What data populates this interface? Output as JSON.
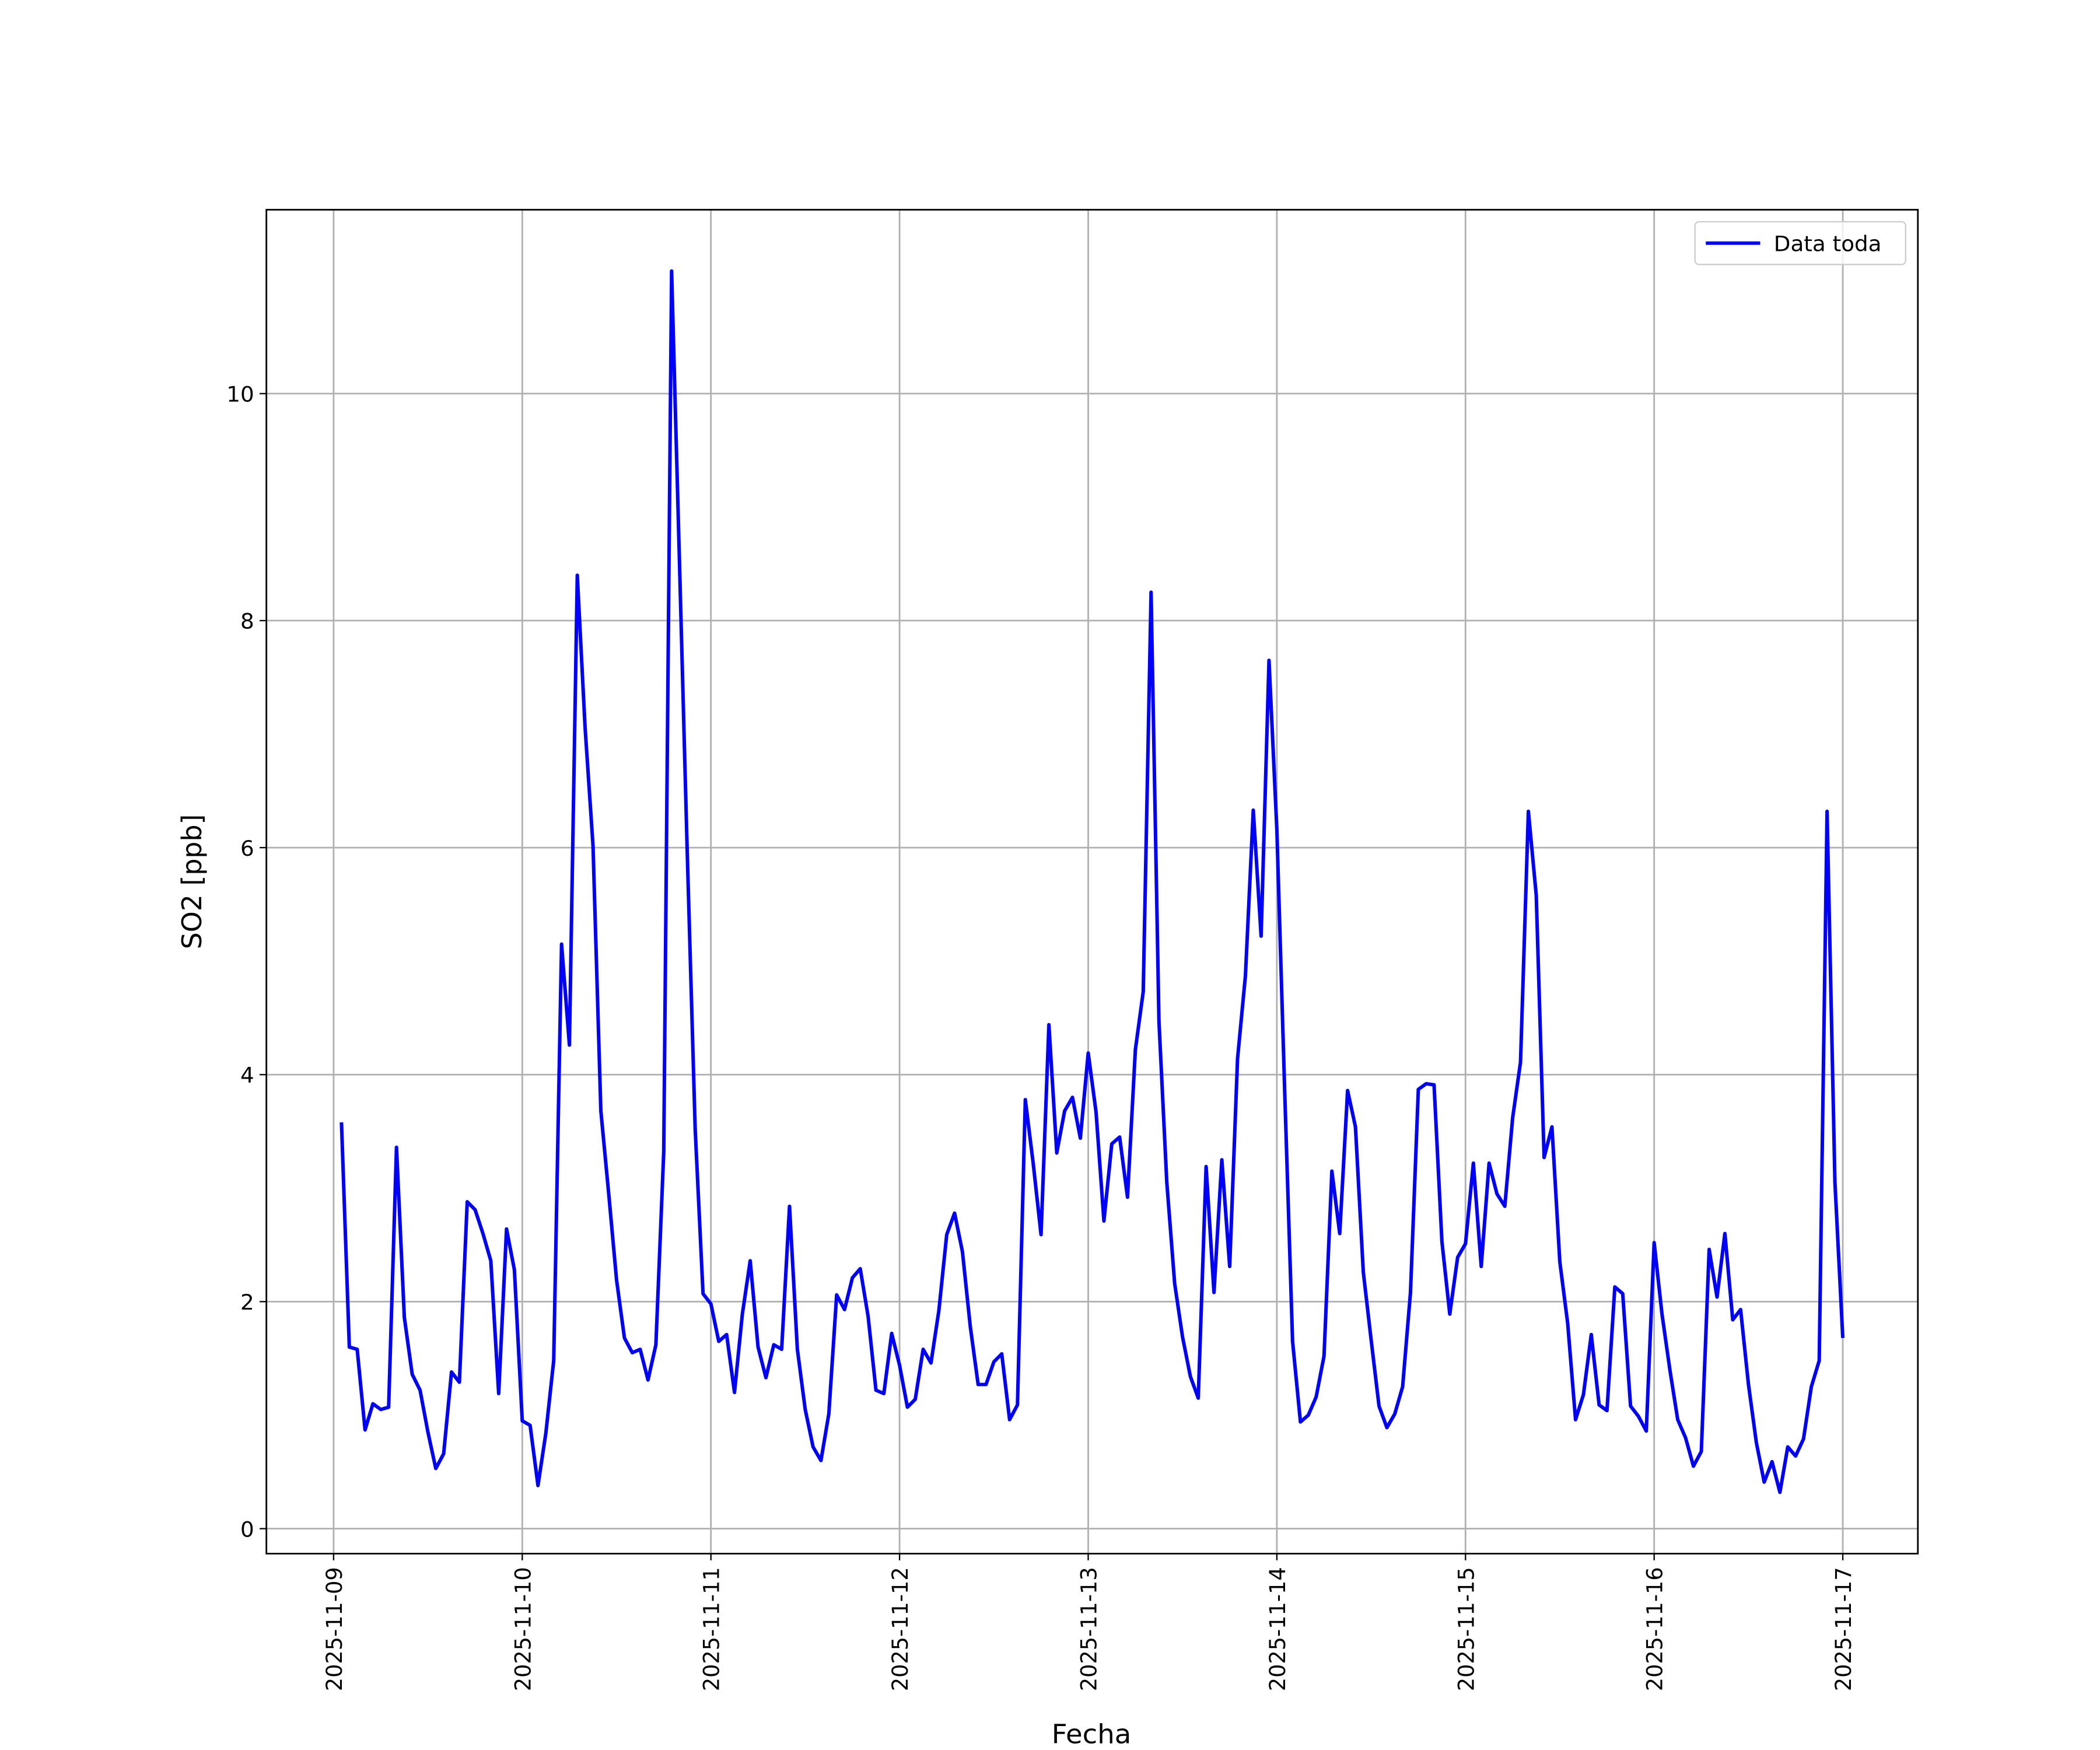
{
  "chart_data": {
    "type": "line",
    "xlabel": "Fecha",
    "ylabel": "SO2 [ppb]",
    "grid": true,
    "legend": "upper right",
    "xlim": [
      "2025-11-08T15:27",
      "2025-11-17T09:33"
    ],
    "ylim": [
      -0.22,
      11.62
    ],
    "xticks": [
      "2025-11-09",
      "2025-11-10",
      "2025-11-11",
      "2025-11-12",
      "2025-11-13",
      "2025-11-14",
      "2025-11-15",
      "2025-11-16",
      "2025-11-17"
    ],
    "yticks": [
      0,
      2,
      4,
      6,
      8,
      10
    ],
    "x": [
      "2025-11-09T01:00",
      "2025-11-09T02:00",
      "2025-11-09T03:00",
      "2025-11-09T04:00",
      "2025-11-09T05:00",
      "2025-11-09T06:00",
      "2025-11-09T07:00",
      "2025-11-09T08:00",
      "2025-11-09T09:00",
      "2025-11-09T10:00",
      "2025-11-09T11:00",
      "2025-11-09T12:00",
      "2025-11-09T13:00",
      "2025-11-09T14:00",
      "2025-11-09T15:00",
      "2025-11-09T16:00",
      "2025-11-09T17:00",
      "2025-11-09T18:00",
      "2025-11-09T19:00",
      "2025-11-09T20:00",
      "2025-11-09T21:00",
      "2025-11-09T22:00",
      "2025-11-09T23:00",
      "2025-11-10T00:00",
      "2025-11-10T01:00",
      "2025-11-10T02:00",
      "2025-11-10T03:00",
      "2025-11-10T04:00",
      "2025-11-10T05:00",
      "2025-11-10T06:00",
      "2025-11-10T07:00",
      "2025-11-10T08:00",
      "2025-11-10T09:00",
      "2025-11-10T10:00",
      "2025-11-10T11:00",
      "2025-11-10T12:00",
      "2025-11-10T13:00",
      "2025-11-10T14:00",
      "2025-11-10T15:00",
      "2025-11-10T16:00",
      "2025-11-10T17:00",
      "2025-11-10T18:00",
      "2025-11-10T19:00",
      "2025-11-10T20:00",
      "2025-11-10T21:00",
      "2025-11-10T22:00",
      "2025-11-10T23:00",
      "2025-11-11T00:00",
      "2025-11-11T01:00",
      "2025-11-11T02:00",
      "2025-11-11T03:00",
      "2025-11-11T04:00",
      "2025-11-11T05:00",
      "2025-11-11T06:00",
      "2025-11-11T07:00",
      "2025-11-11T08:00",
      "2025-11-11T09:00",
      "2025-11-11T10:00",
      "2025-11-11T11:00",
      "2025-11-11T12:00",
      "2025-11-11T13:00",
      "2025-11-11T14:00",
      "2025-11-11T15:00",
      "2025-11-11T16:00",
      "2025-11-11T17:00",
      "2025-11-11T18:00",
      "2025-11-11T19:00",
      "2025-11-11T20:00",
      "2025-11-11T21:00",
      "2025-11-11T22:00",
      "2025-11-11T23:00",
      "2025-11-12T00:00",
      "2025-11-12T01:00",
      "2025-11-12T02:00",
      "2025-11-12T03:00",
      "2025-11-12T04:00",
      "2025-11-12T05:00",
      "2025-11-12T06:00",
      "2025-11-12T07:00",
      "2025-11-12T08:00",
      "2025-11-12T09:00",
      "2025-11-12T10:00",
      "2025-11-12T11:00",
      "2025-11-12T12:00",
      "2025-11-12T13:00",
      "2025-11-12T14:00",
      "2025-11-12T15:00",
      "2025-11-12T16:00",
      "2025-11-12T17:00",
      "2025-11-12T18:00",
      "2025-11-12T19:00",
      "2025-11-12T20:00",
      "2025-11-12T21:00",
      "2025-11-12T22:00",
      "2025-11-12T23:00",
      "2025-11-13T00:00",
      "2025-11-13T01:00",
      "2025-11-13T02:00",
      "2025-11-13T03:00",
      "2025-11-13T04:00",
      "2025-11-13T05:00",
      "2025-11-13T06:00",
      "2025-11-13T07:00",
      "2025-11-13T08:00",
      "2025-11-13T09:00",
      "2025-11-13T10:00",
      "2025-11-13T11:00",
      "2025-11-13T12:00",
      "2025-11-13T13:00",
      "2025-11-13T14:00",
      "2025-11-13T15:00",
      "2025-11-13T16:00",
      "2025-11-13T17:00",
      "2025-11-13T18:00",
      "2025-11-13T19:00",
      "2025-11-13T20:00",
      "2025-11-13T21:00",
      "2025-11-13T22:00",
      "2025-11-13T23:00",
      "2025-11-14T00:00",
      "2025-11-14T01:00",
      "2025-11-14T02:00",
      "2025-11-14T03:00",
      "2025-11-14T04:00",
      "2025-11-14T05:00",
      "2025-11-14T06:00",
      "2025-11-14T07:00",
      "2025-11-14T08:00",
      "2025-11-14T09:00",
      "2025-11-14T10:00",
      "2025-11-14T11:00",
      "2025-11-14T12:00",
      "2025-11-14T13:00",
      "2025-11-14T14:00",
      "2025-11-14T15:00",
      "2025-11-14T16:00",
      "2025-11-14T17:00",
      "2025-11-14T18:00",
      "2025-11-14T19:00",
      "2025-11-14T20:00",
      "2025-11-14T21:00",
      "2025-11-14T22:00",
      "2025-11-14T23:00",
      "2025-11-15T00:00",
      "2025-11-15T01:00",
      "2025-11-15T02:00",
      "2025-11-15T03:00",
      "2025-11-15T04:00",
      "2025-11-15T05:00",
      "2025-11-15T06:00",
      "2025-11-15T07:00",
      "2025-11-15T08:00",
      "2025-11-15T09:00",
      "2025-11-15T10:00",
      "2025-11-15T11:00",
      "2025-11-15T12:00",
      "2025-11-15T13:00",
      "2025-11-15T14:00",
      "2025-11-15T15:00",
      "2025-11-15T16:00",
      "2025-11-15T17:00",
      "2025-11-15T18:00",
      "2025-11-15T19:00",
      "2025-11-15T20:00",
      "2025-11-15T21:00",
      "2025-11-15T22:00",
      "2025-11-15T23:00",
      "2025-11-16T00:00",
      "2025-11-16T01:00",
      "2025-11-16T02:00",
      "2025-11-16T03:00",
      "2025-11-16T04:00",
      "2025-11-16T05:00",
      "2025-11-16T06:00",
      "2025-11-16T07:00",
      "2025-11-16T08:00",
      "2025-11-16T09:00",
      "2025-11-16T10:00",
      "2025-11-16T11:00",
      "2025-11-16T12:00",
      "2025-11-16T13:00",
      "2025-11-16T14:00",
      "2025-11-16T15:00",
      "2025-11-16T16:00",
      "2025-11-16T17:00",
      "2025-11-16T18:00",
      "2025-11-16T19:00",
      "2025-11-16T20:00",
      "2025-11-16T21:00",
      "2025-11-16T22:00",
      "2025-11-16T23:00",
      "2025-11-17T00:00"
    ],
    "series": [
      {
        "name": "Data toda",
        "color": "#0000ff",
        "values": [
          3.58,
          1.6,
          1.58,
          0.87,
          1.1,
          1.05,
          1.07,
          3.36,
          1.86,
          1.36,
          1.22,
          0.85,
          0.53,
          0.66,
          1.38,
          1.29,
          2.88,
          2.81,
          2.6,
          2.36,
          1.19,
          2.64,
          2.28,
          0.95,
          0.91,
          0.38,
          0.84,
          1.48,
          5.15,
          4.26,
          8.4,
          7.05,
          6.02,
          3.68,
          2.95,
          2.19,
          1.68,
          1.55,
          1.58,
          1.31,
          1.62,
          3.32,
          11.08,
          8.52,
          5.93,
          3.52,
          2.07,
          1.98,
          1.65,
          1.71,
          1.2,
          1.89,
          2.36,
          1.6,
          1.33,
          1.62,
          1.58,
          2.84,
          1.58,
          1.05,
          0.72,
          0.6,
          1.01,
          2.06,
          1.93,
          2.21,
          2.29,
          1.87,
          1.22,
          1.19,
          1.72,
          1.44,
          1.07,
          1.14,
          1.58,
          1.46,
          1.92,
          2.59,
          2.78,
          2.44,
          1.78,
          1.27,
          1.27,
          1.47,
          1.54,
          0.96,
          1.09,
          3.78,
          3.22,
          2.59,
          4.44,
          3.31,
          3.68,
          3.8,
          3.44,
          4.19,
          3.67,
          2.71,
          3.39,
          3.45,
          2.92,
          4.22,
          4.73,
          8.25,
          4.47,
          3.05,
          2.16,
          1.69,
          1.34,
          1.15,
          3.19,
          2.08,
          3.25,
          2.31,
          4.14,
          4.87,
          6.33,
          5.22,
          7.65,
          6.16,
          3.85,
          1.65,
          0.94,
          1.0,
          1.16,
          1.52,
          3.15,
          2.6,
          3.86,
          3.54,
          2.26,
          1.66,
          1.08,
          0.89,
          1.01,
          1.25,
          2.08,
          3.87,
          3.92,
          3.91,
          2.53,
          1.89,
          2.39,
          2.51,
          3.22,
          2.31,
          3.22,
          2.95,
          2.84,
          3.62,
          4.11,
          6.32,
          5.58,
          3.27,
          3.54,
          2.35,
          1.81,
          0.96,
          1.18,
          1.71,
          1.09,
          1.04,
          2.13,
          2.07,
          1.08,
          0.99,
          0.86,
          2.52,
          1.89,
          1.4,
          0.96,
          0.8,
          0.55,
          0.68,
          2.46,
          2.04,
          2.6,
          1.84,
          1.93,
          1.27,
          0.76,
          0.41,
          0.59,
          0.32,
          0.72,
          0.64,
          0.79,
          1.25,
          1.48,
          6.32,
          3.05,
          1.68
        ]
      }
    ]
  }
}
